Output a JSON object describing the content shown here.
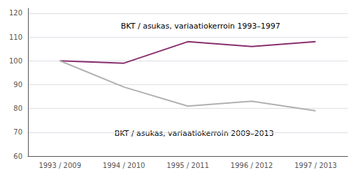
{
  "chart_data": {
    "type": "line",
    "categories": [
      "1993 / 2009",
      "1994 / 2010",
      "1995 / 2011",
      "1996 / 2012",
      "1997 / 2013"
    ],
    "series": [
      {
        "color": "#882d6e",
        "values": [
          100,
          99,
          108,
          106,
          108
        ]
      },
      {
        "color": "#b0b0b0",
        "values": [
          100,
          89,
          81,
          83,
          79
        ]
      }
    ],
    "annotations": [
      "BKT / asukas, variaatiokerroin 1993–1997",
      "BKT / asukas, variaatiokerroin 2009–2013"
    ],
    "ylim": [
      60,
      122
    ],
    "yticks": [
      60,
      70,
      80,
      90,
      100,
      110,
      120
    ],
    "grid": true
  }
}
